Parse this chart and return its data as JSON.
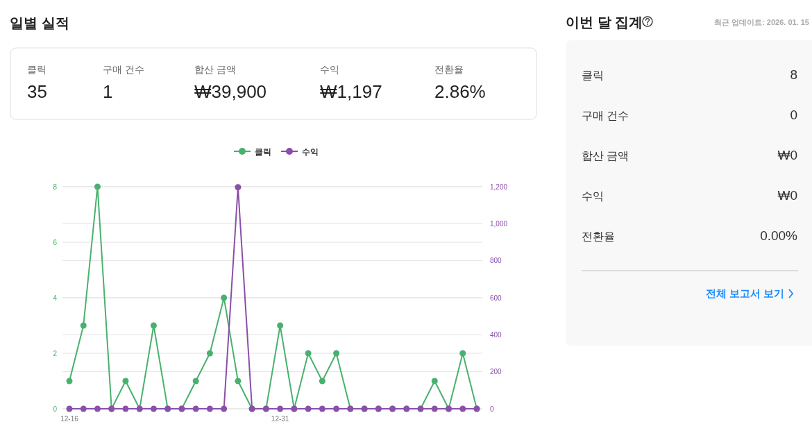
{
  "chart_data": [
    {
      "type": "other",
      "title": "일별 실적",
      "categories": [
        "클릭",
        "구매 건수",
        "합산 금액",
        "수익",
        "전환율"
      ],
      "value_labels": [
        "35",
        "1",
        "₩39,900",
        "₩1,197",
        "2.86%"
      ]
    },
    {
      "type": "line",
      "categories": [
        "12-16",
        null,
        null,
        null,
        null,
        null,
        null,
        null,
        null,
        null,
        null,
        null,
        null,
        null,
        null,
        "12-31",
        null,
        null,
        null,
        null,
        null,
        null,
        null,
        null,
        null,
        null,
        null,
        null,
        null,
        null
      ],
      "series": [
        {
          "name": "클릭",
          "color": "#48b16e",
          "values": [
            1,
            3,
            8,
            0,
            1,
            0,
            3,
            0,
            0,
            1,
            2,
            4,
            1,
            0,
            0,
            3,
            0,
            2,
            1,
            2,
            0,
            0,
            0,
            0,
            0,
            0,
            1,
            0,
            2,
            0
          ]
        },
        {
          "name": "수익",
          "color": "#8a4fa8",
          "axis": "y2",
          "values": [
            0,
            0,
            0,
            0,
            0,
            0,
            0,
            0,
            0,
            0,
            0,
            0,
            1197,
            0,
            0,
            0,
            0,
            0,
            0,
            0,
            0,
            0,
            0,
            0,
            0,
            0,
            0,
            0,
            0,
            0
          ]
        }
      ],
      "ylim": [
        0,
        8
      ],
      "yticks": [
        0,
        2,
        4,
        6,
        8
      ],
      "y2lim": [
        0,
        1200
      ],
      "y2ticks": [
        0,
        200,
        400,
        600,
        800,
        {
          "value": 1000,
          "label": "1,000"
        },
        {
          "value": 1200,
          "label": "1,200"
        }
      ],
      "grid": true,
      "legend": "top",
      "marker": "circle",
      "line_style": "solid"
    },
    {
      "type": "other",
      "title": "이번 달 집계",
      "subtitle": "최근 업데이트: 2026. 01. 15",
      "categories": [
        "클릭",
        "구매 건수",
        "합산 금액",
        "수익",
        "전환율"
      ],
      "value_labels": [
        "8",
        "0",
        "₩0",
        "₩0",
        "0.00%"
      ],
      "annotations": [
        "전체 보고서 보기"
      ]
    }
  ]
}
